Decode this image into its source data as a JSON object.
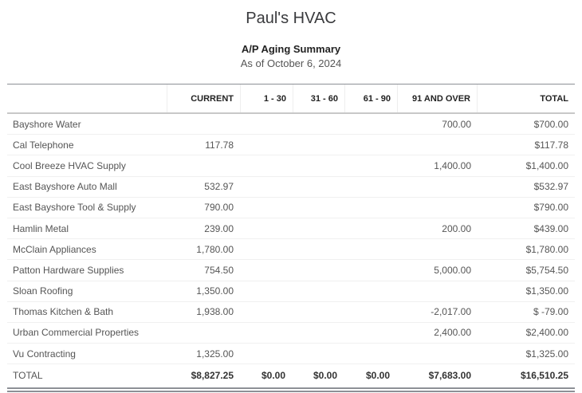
{
  "company": "Paul's HVAC",
  "report_title": "A/P Aging Summary",
  "report_date": "As of October 6, 2024",
  "columns": [
    "",
    "CURRENT",
    "1 - 30",
    "31 - 60",
    "61 - 90",
    "91 AND OVER",
    "TOTAL"
  ],
  "rows": [
    [
      "Bayshore Water",
      "",
      "",
      "",
      "",
      "700.00",
      "$700.00"
    ],
    [
      "Cal Telephone",
      "117.78",
      "",
      "",
      "",
      "",
      "$117.78"
    ],
    [
      "Cool Breeze HVAC Supply",
      "",
      "",
      "",
      "",
      "1,400.00",
      "$1,400.00"
    ],
    [
      "East Bayshore Auto Mall",
      "532.97",
      "",
      "",
      "",
      "",
      "$532.97"
    ],
    [
      "East Bayshore Tool & Supply",
      "790.00",
      "",
      "",
      "",
      "",
      "$790.00"
    ],
    [
      "Hamlin Metal",
      "239.00",
      "",
      "",
      "",
      "200.00",
      "$439.00"
    ],
    [
      "McClain Appliances",
      "1,780.00",
      "",
      "",
      "",
      "",
      "$1,780.00"
    ],
    [
      "Patton Hardware Supplies",
      "754.50",
      "",
      "",
      "",
      "5,000.00",
      "$5,754.50"
    ],
    [
      "Sloan Roofing",
      "1,350.00",
      "",
      "",
      "",
      "",
      "$1,350.00"
    ],
    [
      "Thomas Kitchen & Bath",
      "1,938.00",
      "",
      "",
      "",
      "-2,017.00",
      "$ -79.00"
    ],
    [
      "Urban Commercial Properties",
      "",
      "",
      "",
      "",
      "2,400.00",
      "$2,400.00"
    ],
    [
      "Vu Contracting",
      "1,325.00",
      "",
      "",
      "",
      "",
      "$1,325.00"
    ]
  ],
  "total": [
    "TOTAL",
    "$8,827.25",
    "$0.00",
    "$0.00",
    "$0.00",
    "$7,683.00",
    "$16,510.25"
  ]
}
